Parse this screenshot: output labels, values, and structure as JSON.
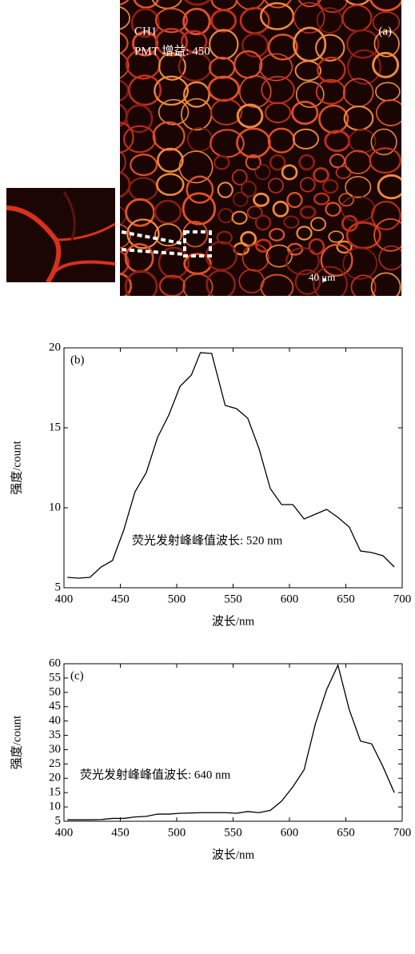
{
  "image": {
    "label": "(a)",
    "channel": "CH1",
    "gain": "PMT 增益: 450",
    "scale_bar": "40 μm"
  },
  "chart_data": [
    {
      "type": "line",
      "label": "(b)",
      "xlabel": "波长/nm",
      "ylabel": "强度/count",
      "annotation": "荧光发射峰峰值波长: 520 nm",
      "color": "#000000",
      "x": [
        403,
        413,
        423,
        433,
        443,
        453,
        463,
        473,
        483,
        493,
        503,
        513,
        521,
        531,
        543,
        553,
        563,
        573,
        583,
        593,
        603,
        613,
        623,
        633,
        643,
        653,
        663,
        673,
        683,
        693
      ],
      "values": [
        5.65,
        5.6,
        5.65,
        6.3,
        6.7,
        8.6,
        11.0,
        12.2,
        14.4,
        15.8,
        17.6,
        18.3,
        19.7,
        19.65,
        16.4,
        16.2,
        15.6,
        13.7,
        11.2,
        10.2,
        10.2,
        9.3,
        9.6,
        9.9,
        9.4,
        8.8,
        7.3,
        7.2,
        7.0,
        6.3
      ],
      "xlim": [
        400,
        700
      ],
      "ylim": [
        5,
        20
      ],
      "xticks": [
        400,
        450,
        500,
        550,
        600,
        650,
        700
      ],
      "yticks": [
        5,
        10,
        15,
        20
      ]
    },
    {
      "type": "line",
      "label": "(c)",
      "xlabel": "波长/nm",
      "ylabel": "强度/count",
      "annotation": "荧光发射峰峰值波长: 640 nm",
      "color": "#000000",
      "x": [
        403,
        413,
        423,
        433,
        443,
        453,
        463,
        473,
        483,
        493,
        503,
        513,
        523,
        533,
        543,
        553,
        563,
        573,
        583,
        593,
        603,
        613,
        623,
        633,
        643,
        653,
        663,
        673,
        683,
        693
      ],
      "values": [
        5.5,
        5.5,
        5.5,
        5.6,
        6.0,
        6.0,
        6.5,
        6.7,
        7.5,
        7.5,
        7.8,
        7.9,
        8.0,
        8.0,
        8.0,
        7.8,
        8.4,
        8.0,
        8.8,
        12,
        17,
        23,
        39,
        51,
        59.5,
        44,
        33,
        32,
        24,
        15
      ],
      "xlim": [
        400,
        700
      ],
      "ylim": [
        5,
        60
      ],
      "xticks": [
        400,
        450,
        500,
        550,
        600,
        650,
        700
      ],
      "yticks": [
        5,
        10,
        15,
        20,
        25,
        30,
        35,
        40,
        45,
        50,
        55,
        60
      ]
    }
  ]
}
